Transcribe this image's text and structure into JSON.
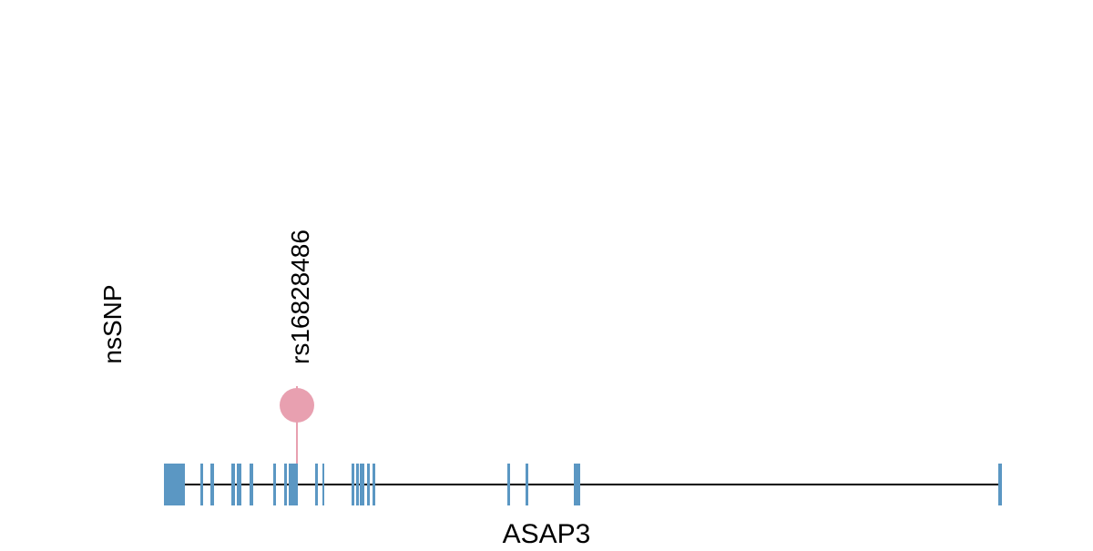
{
  "track_label": "nsSNP",
  "gene": {
    "name": "ASAP3",
    "color": "#5b97c3",
    "backbone_color": "#000000",
    "exons": [
      {
        "id": "e1",
        "start": 180,
        "end": 203,
        "tall": true
      },
      {
        "id": "e2",
        "start": 220,
        "end": 223,
        "tall": false
      },
      {
        "id": "e3",
        "start": 231,
        "end": 235,
        "tall": false
      },
      {
        "id": "e4",
        "start": 254,
        "end": 258,
        "tall": false
      },
      {
        "id": "e5",
        "start": 260,
        "end": 265,
        "tall": false
      },
      {
        "id": "e6",
        "start": 274,
        "end": 278,
        "tall": false
      },
      {
        "id": "e7",
        "start": 300,
        "end": 303,
        "tall": false
      },
      {
        "id": "e8",
        "start": 312,
        "end": 315,
        "tall": false
      },
      {
        "id": "e9",
        "start": 317,
        "end": 327,
        "tall": false
      },
      {
        "id": "e10",
        "start": 346,
        "end": 349,
        "tall": false
      },
      {
        "id": "e11",
        "start": 354,
        "end": 356,
        "tall": false
      },
      {
        "id": "e12",
        "start": 386,
        "end": 389,
        "tall": false
      },
      {
        "id": "e13",
        "start": 391,
        "end": 394,
        "tall": false
      },
      {
        "id": "e14",
        "start": 395,
        "end": 400,
        "tall": false
      },
      {
        "id": "e15",
        "start": 403,
        "end": 406,
        "tall": false
      },
      {
        "id": "e16",
        "start": 409,
        "end": 412,
        "tall": false
      },
      {
        "id": "e17",
        "start": 557,
        "end": 560,
        "tall": false
      },
      {
        "id": "e18",
        "start": 577,
        "end": 580,
        "tall": false
      },
      {
        "id": "e19",
        "start": 630,
        "end": 637,
        "tall": false
      },
      {
        "id": "e20",
        "start": 1096,
        "end": 1100,
        "tall": false
      }
    ]
  },
  "variants": [
    {
      "id": "rs16828486",
      "position": 326,
      "color": "#e8a0b0"
    }
  ]
}
